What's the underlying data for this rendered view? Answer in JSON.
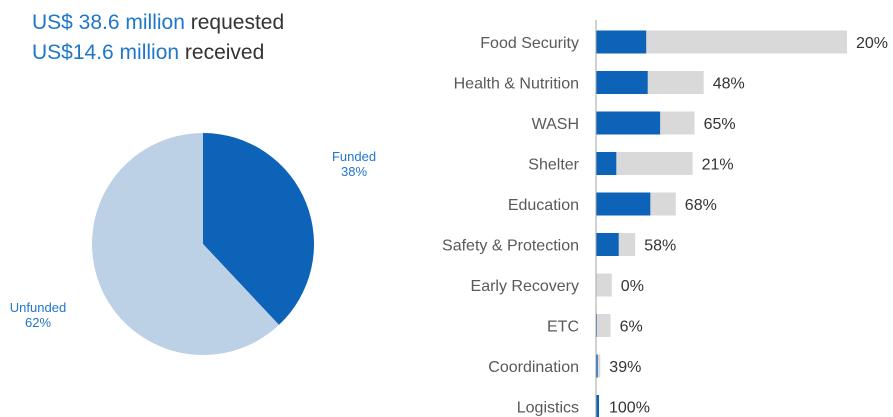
{
  "header": {
    "requested_amount": "US$ 38.6 million",
    "requested_text": " requested",
    "received_amount": "US$14.6 million",
    "received_text": " received"
  },
  "colors": {
    "funded": "#0d63b8",
    "unfunded_pie": "#bcd0e6",
    "requirement_bar": "#d9d9d9",
    "text": "#595959",
    "accent_text": "#1f77c9"
  },
  "chart_data": [
    {
      "type": "pie",
      "slices": [
        {
          "name": "Funded",
          "value": 38,
          "label": "38%"
        },
        {
          "name": "Unfunded",
          "value": 62,
          "label": "62%"
        }
      ]
    },
    {
      "type": "bar",
      "orientation": "horizontal",
      "categories": [
        "Food Security",
        "Health & Nutrition",
        "WASH",
        "Shelter",
        "Education",
        "Safety & Protection",
        "Early Recovery",
        "ETC",
        "Coordination",
        "Logistics"
      ],
      "series": [
        {
          "values": [
            20,
            48,
            65,
            21,
            68,
            58,
            0,
            6,
            39,
            100
          ]
        }
      ],
      "requirement_scale": [
        100,
        42.9,
        39.3,
        38.5,
        31.8,
        15.6,
        6.3,
        5.8,
        1.7,
        1.2
      ],
      "value_labels": [
        "20%",
        "48%",
        "65%",
        "21%",
        "68%",
        "58%",
        "0%",
        "6%",
        "39%",
        "100%"
      ]
    }
  ]
}
